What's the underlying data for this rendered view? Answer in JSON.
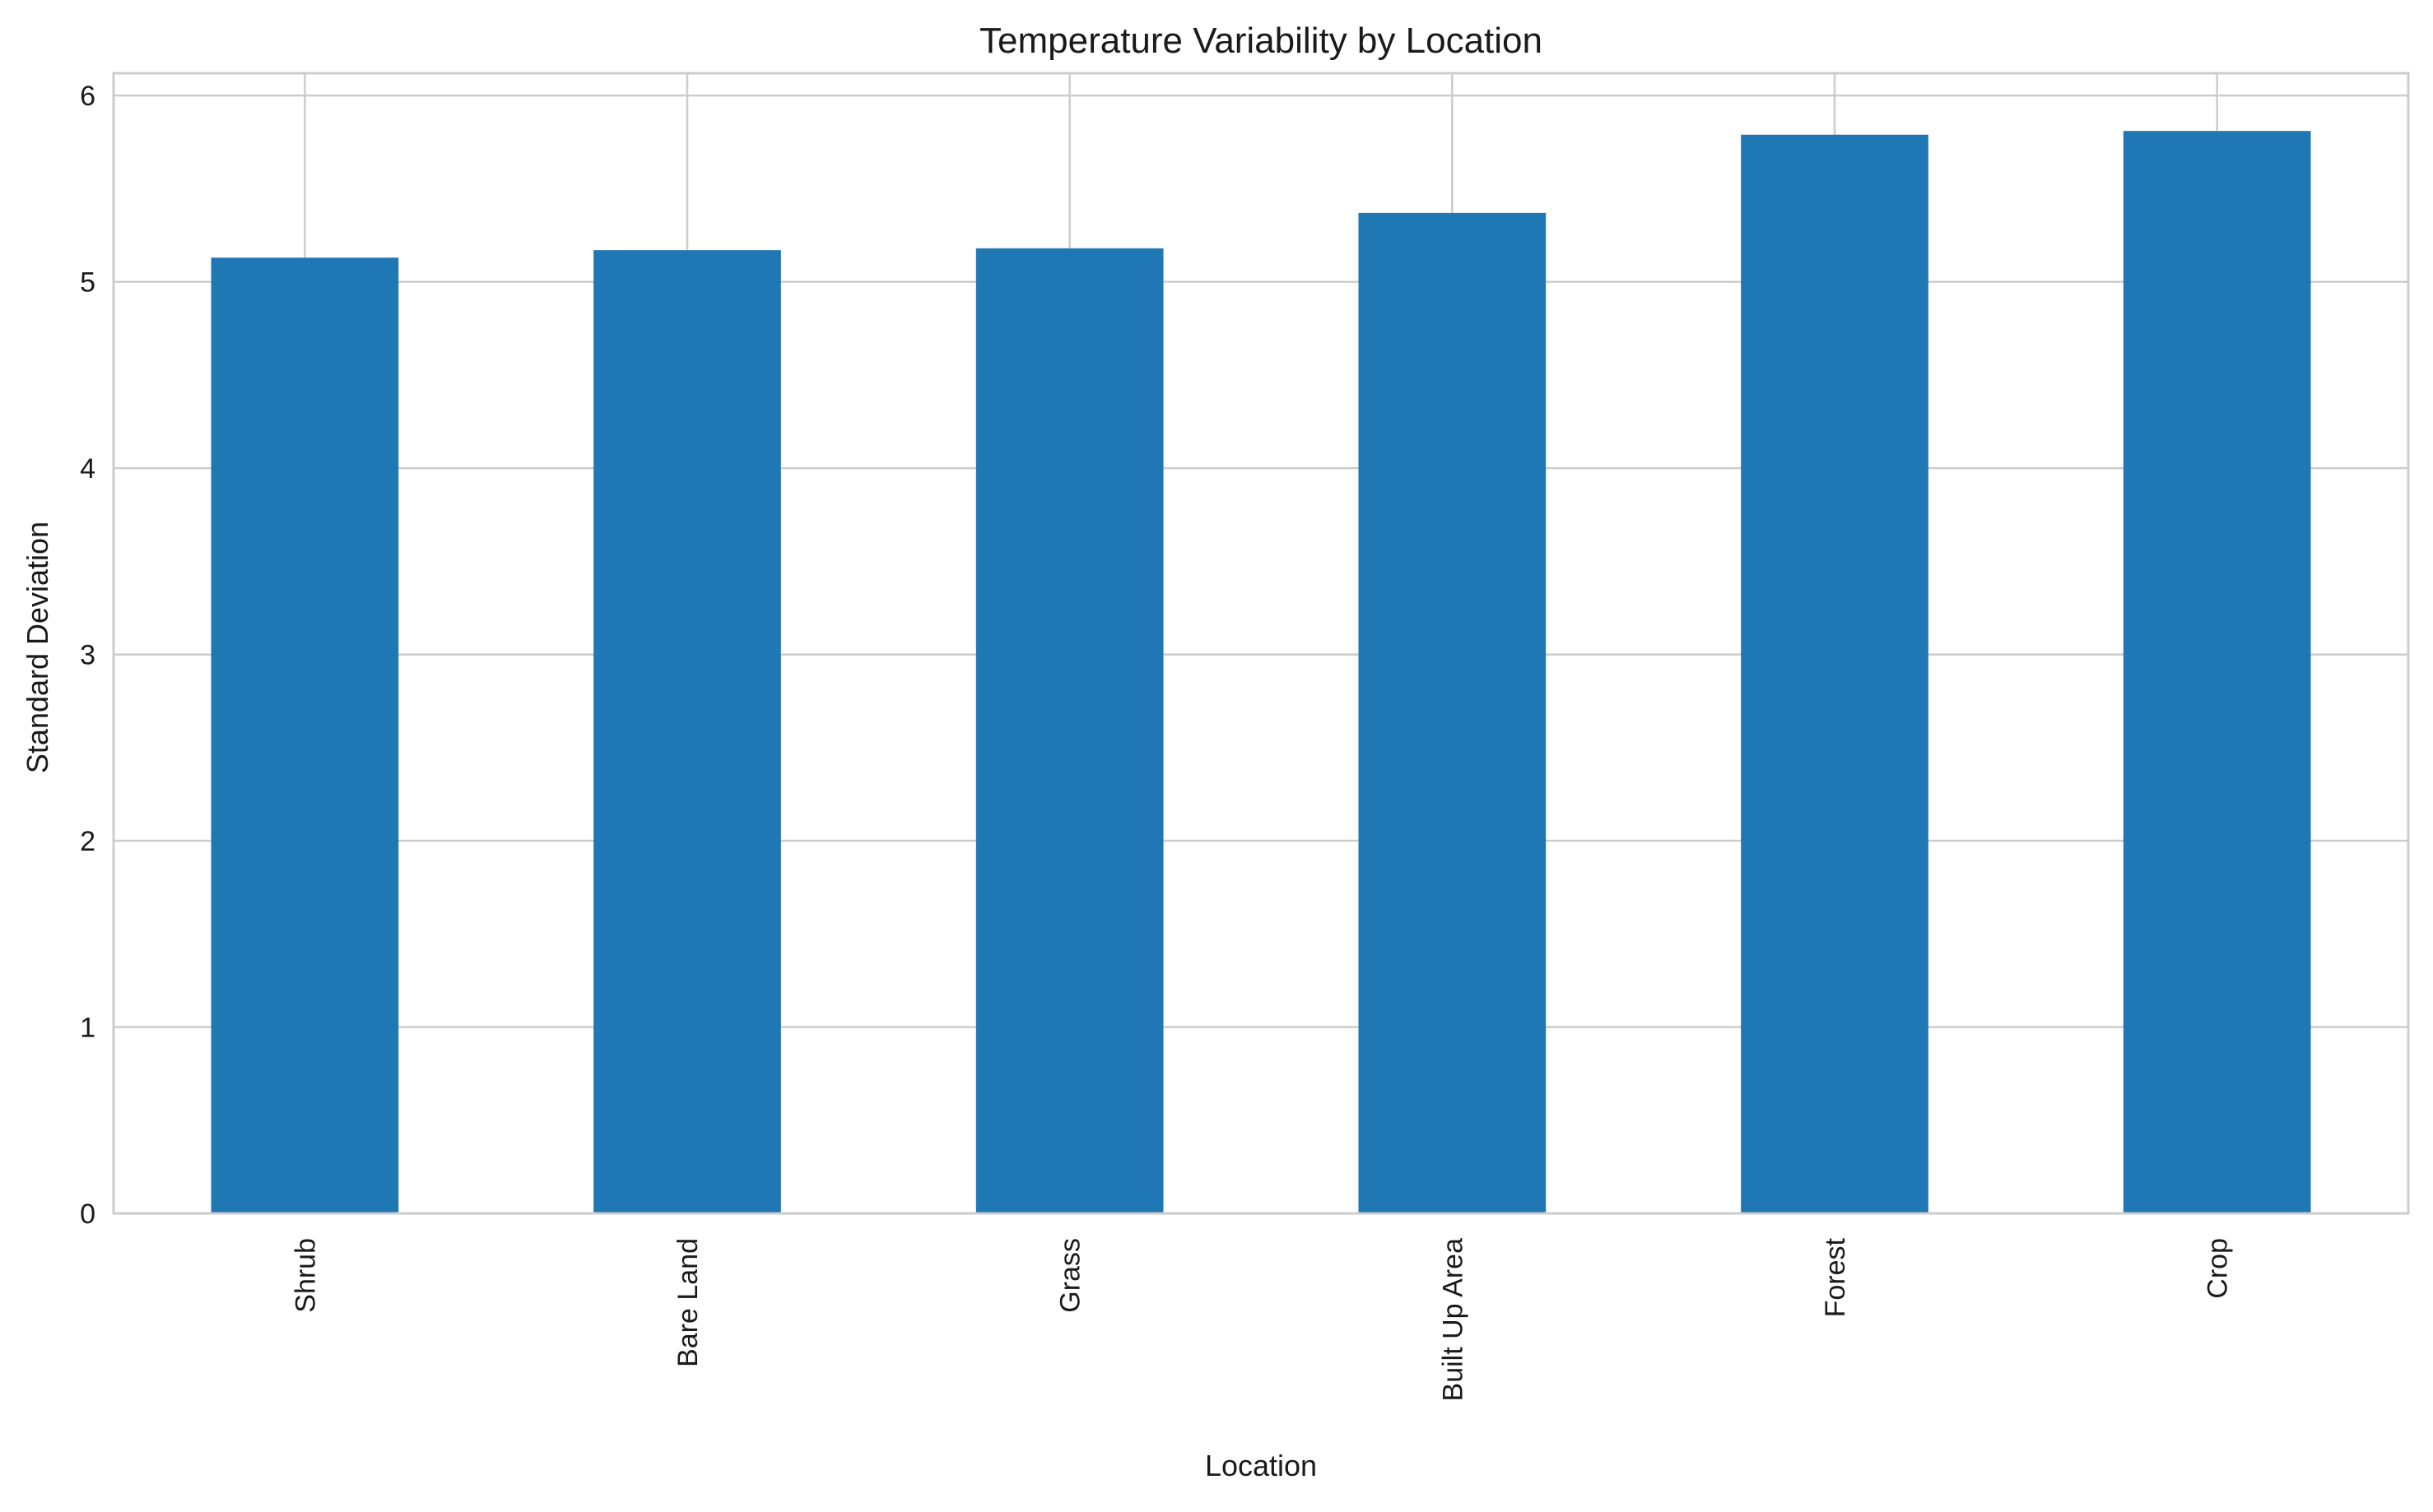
{
  "chart_data": {
    "type": "bar",
    "title": "Temperature Variability by Location",
    "xlabel": "Location",
    "ylabel": "Standard Deviation",
    "categories": [
      "Shrub",
      "Bare Land",
      "Grass",
      "Built Up Area",
      "Forest",
      "Crop"
    ],
    "values": [
      5.13,
      5.17,
      5.18,
      5.37,
      5.79,
      5.81
    ],
    "ylim": [
      0,
      6.12
    ],
    "yticks": [
      0,
      1,
      2,
      3,
      4,
      5,
      6
    ],
    "grid": true,
    "legend": "none",
    "bar_color": "#1f77b4"
  }
}
